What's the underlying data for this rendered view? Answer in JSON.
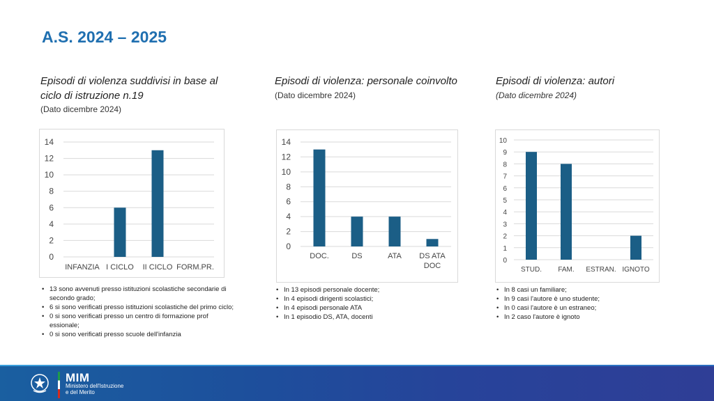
{
  "header": {
    "title": "A.S. 2024 – 2025"
  },
  "sections": [
    {
      "title_line1": "Episodi di violenza suddivisi in base al",
      "title_line2": "ciclo di istruzione n.19",
      "subtitle": "(Dato dicembre 2024)",
      "bullets": [
        "13 sono avvenuti presso istituzioni scolastiche secondarie di secondo grado;",
        "6 si sono verificati presso istituzioni scolastiche del primo ciclo;",
        "0 si sono verificati presso un centro di formazione prof essionale;",
        "0 si sono verificati presso scuole dell'infanzia"
      ]
    },
    {
      "title_line1": "Episodi di violenza: personale coinvolto",
      "subtitle": "(Dato dicembre 2024)",
      "bullets": [
        "In 13 episodi personale docente;",
        "In 4 episodi dirigenti scolastici;",
        "In 4 episodi personale ATA",
        "In 1 episodio DS, ATA, docenti"
      ]
    },
    {
      "title_line1": "Episodi di violenza: autori",
      "subtitle": "(Dato dicembre 2024)",
      "bullets": [
        "In 8 casi un familiare;",
        "In 9 casi l'autore è uno studente;",
        "In 0 casi l'autore è un estraneo;",
        "In 2 caso l'autore è ignoto"
      ]
    }
  ],
  "footer": {
    "logo_text": "MIM",
    "ministry_line1": "Ministero dell'Istruzione",
    "ministry_line2": "e del Merito"
  },
  "colors": {
    "bar": "#1b5e86",
    "grid": "#d9d9d9",
    "title": "#1f6fb0"
  },
  "chart_data": [
    {
      "type": "bar",
      "title": "Episodi di violenza suddivisi in base al ciclo di istruzione n.19",
      "categories": [
        "INFANZIA",
        "I CICLO",
        "II CICLO",
        "FORM.PR."
      ],
      "values": [
        0,
        6,
        13,
        0
      ],
      "yticks": [
        0,
        2,
        4,
        6,
        8,
        10,
        12,
        14
      ],
      "ylim": [
        0,
        14
      ],
      "grid": true
    },
    {
      "type": "bar",
      "title": "Episodi di violenza: personale coinvolto",
      "categories": [
        [
          "DOC."
        ],
        [
          "DS"
        ],
        [
          "ATA"
        ],
        [
          "DS ATA",
          "DOC"
        ]
      ],
      "values": [
        13,
        4,
        4,
        1
      ],
      "yticks": [
        0,
        2,
        4,
        6,
        8,
        10,
        12,
        14
      ],
      "ylim": [
        0,
        14
      ],
      "grid": true
    },
    {
      "type": "bar",
      "title": "Episodi di violenza: autori",
      "categories": [
        "STUD.",
        "FAM.",
        "ESTRAN.",
        "IGNOTO"
      ],
      "values": [
        9,
        8,
        0,
        2
      ],
      "yticks": [
        0,
        1,
        2,
        3,
        4,
        5,
        6,
        7,
        8,
        9,
        10
      ],
      "ylim": [
        0,
        10
      ],
      "grid": true
    }
  ]
}
